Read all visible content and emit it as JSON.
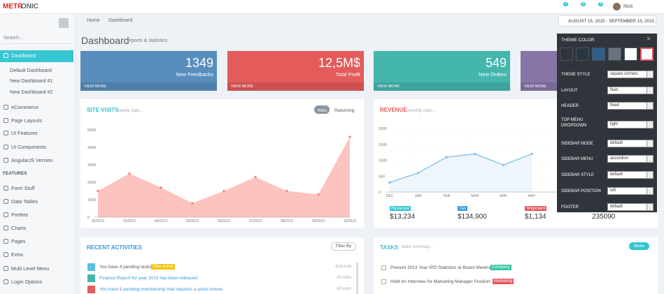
{
  "header": {
    "logo_a": "METR",
    "logo_b": "ONIC",
    "badges": [
      7,
      3,
      4
    ],
    "user": "Nick"
  },
  "sidebar": {
    "search": "Search...",
    "items": [
      "Dashboard",
      "Default Dashboard",
      "New Dashboard #1",
      "New Dashboard #2",
      "eCommerce",
      "Page Layouts",
      "UI Features",
      "UI Components",
      "AngularJS Version",
      "FEATURES",
      "Form Stuff",
      "Data Tables",
      "Portlets",
      "Charts",
      "Pages",
      "Extra",
      "Multi Level Menu",
      "Login Options"
    ]
  },
  "breadcrumb": [
    "Home",
    "Dashboard"
  ],
  "date_range": "AUGUST 15, 2015 - SEPTEMBER 13, 2015",
  "page_title": "Dashboard",
  "page_subtitle": "reports & statistics",
  "stats": [
    {
      "value": 1349,
      "label": "New Feedbacks",
      "link": "VIEW MORE",
      "color": "#578ebe"
    },
    {
      "value": "12,5M$",
      "label": "Total Profit",
      "link": "VIEW MORE",
      "color": "#e35b5a"
    },
    {
      "value": 549,
      "label": "New Orders",
      "link": "VIEW MORE",
      "color": "#44b6ae"
    },
    {
      "link": "VIEW MORE",
      "color": "#8775a7"
    }
  ],
  "chart_data": [
    {
      "type": "area",
      "title": "SITE VISITS",
      "subtitle": "weekly stats...",
      "tabs": [
        "New",
        "Returning"
      ],
      "categories": [
        "02/2013",
        "03/2013",
        "04/2013",
        "05/2013",
        "06/2013",
        "07/2013",
        "08/2013",
        "09/2013",
        "10/2013"
      ],
      "values": [
        1500,
        2500,
        1700,
        800,
        1500,
        2300,
        1500,
        1300,
        4600
      ],
      "color": "#fcbcb8",
      "ylim": [
        0,
        5000
      ],
      "yticks": [
        0,
        1000,
        2000,
        3000,
        4000,
        5000
      ],
      "grid": false
    },
    {
      "type": "line",
      "title": "REVENUE",
      "subtitle": "monthly stats...",
      "categories": [
        "DEC",
        "JAN",
        "FEB",
        "MAR",
        "APR",
        "MAY"
      ],
      "values": [
        300,
        600,
        1100,
        1200,
        850,
        1200
      ],
      "color": "#8fc6e6",
      "ylim": [
        0,
        2000
      ],
      "yticks": [
        0,
        500,
        1000,
        1500,
        2000
      ],
      "grid": true
    }
  ],
  "revenue_stats": [
    {
      "label": "Revenue",
      "value": "$13,234",
      "color": "#32c5d2"
    },
    {
      "label": "Tax",
      "value": "$134,900",
      "color": "#3598dc"
    },
    {
      "label": "Shipment",
      "value": "$1,134",
      "color": "#e7505a"
    },
    {
      "value": "235090"
    }
  ],
  "activities": {
    "title": "RECENT ACTIVITIES",
    "filter": "Filter By",
    "items": [
      {
        "text": "You have 4 pending tasks.",
        "action": "Take action",
        "time": "Just now",
        "color": "#5bc0de"
      },
      {
        "text": "Finance Report for year 2013 has been released.",
        "time": "20 mins",
        "color": "#45b6af"
      },
      {
        "text": "You have 5 pending membership that requires a quick review.",
        "time": "24 mins",
        "color": "#e35b5a"
      }
    ]
  },
  "tasks": {
    "title": "TASKS",
    "subtitle": "tasks summary...",
    "button": "More",
    "items": [
      {
        "text": "Present 2013 Year IPO Statistics at Board Meeting",
        "tag": "Company",
        "tag_color": "#36c6a3"
      },
      {
        "text": "Hold An Interview for Marketing Manager Position",
        "tag": "Marketing",
        "tag_color": "#e7505a"
      }
    ]
  },
  "theme_panel": {
    "title": "THEME COLOR",
    "colors": [
      "#2f353b",
      "#2b3643",
      "#2d5f8b",
      "#697380",
      "#ffffff",
      "#ffffff"
    ],
    "options": [
      {
        "label": "THEME STYLE",
        "value": "square corners"
      },
      {
        "label": "LAYOUT",
        "value": "fluid"
      },
      {
        "label": "HEADER",
        "value": "fixed"
      },
      {
        "label": "TOP MENU DROPDOWN",
        "value": "light"
      },
      {
        "label": "SIDEBAR MODE",
        "value": "default"
      },
      {
        "label": "SIDEBAR MENU",
        "value": "accordion"
      },
      {
        "label": "SIDEBAR STYLE",
        "value": "default"
      },
      {
        "label": "SIDEBAR POSITION",
        "value": "left"
      },
      {
        "label": "FOOTER",
        "value": "default"
      }
    ]
  }
}
